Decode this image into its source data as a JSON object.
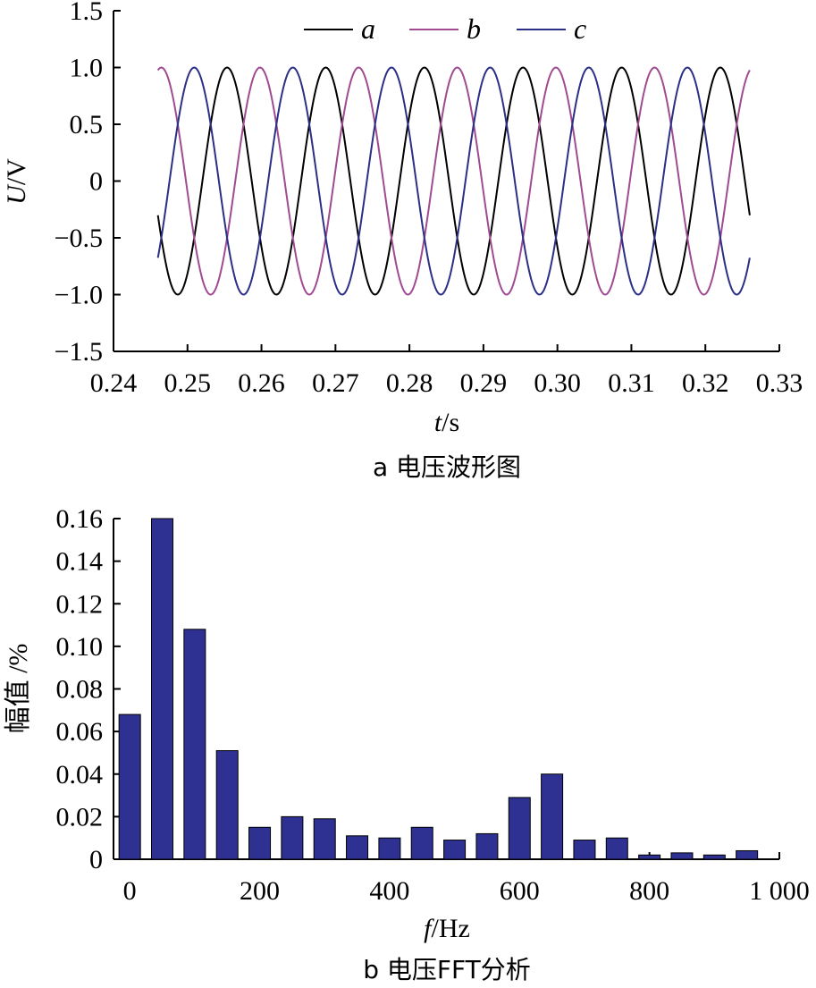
{
  "chart_data": [
    {
      "type": "line",
      "caption": "a 电压波形图",
      "xlabel_var": "t",
      "xlabel_unit": "/s",
      "ylabel_var": "U",
      "ylabel_unit": "/V",
      "xlim": [
        0.24,
        0.33
      ],
      "ylim": [
        -1.5,
        1.5
      ],
      "x_ticks": [
        "0.24",
        "0.25",
        "0.26",
        "0.27",
        "0.28",
        "0.29",
        "0.30",
        "0.31",
        "0.32",
        "0.33"
      ],
      "y_ticks": [
        "1.5",
        "1.0",
        "0.5",
        "0",
        "−0.5",
        "−1.0",
        "−1.5"
      ],
      "x_range": [
        0.246,
        0.326
      ],
      "frequency_hz": 75,
      "amplitude": 1.0,
      "series": [
        {
          "name": "a",
          "color": "#000000",
          "phase_deg": 0
        },
        {
          "name": "b",
          "color": "#a04a92",
          "phase_deg": -120
        },
        {
          "name": "c",
          "color": "#2b2f86",
          "phase_deg": 120
        }
      ],
      "legend_position": "top"
    },
    {
      "type": "bar",
      "caption": "b 电压FFT分析",
      "xlabel_var": "f",
      "xlabel_unit": "/Hz",
      "ylabel": "幅值 /%",
      "xlim": [
        -25,
        1000
      ],
      "ylim": [
        0,
        0.16
      ],
      "x_ticks": [
        "0",
        "200",
        "400",
        "600",
        "800",
        "1 000"
      ],
      "y_ticks": [
        "0.16",
        "0.14",
        "0.12",
        "0.10",
        "0.08",
        "0.06",
        "0.04",
        "0.02",
        "0"
      ],
      "bar_color": "#2e3192",
      "x": [
        0,
        50,
        100,
        150,
        200,
        250,
        300,
        350,
        400,
        450,
        500,
        550,
        600,
        650,
        700,
        750,
        800,
        850,
        900,
        950
      ],
      "values": [
        0.068,
        0.16,
        0.108,
        0.051,
        0.015,
        0.02,
        0.019,
        0.011,
        0.01,
        0.015,
        0.009,
        0.012,
        0.029,
        0.04,
        0.009,
        0.01,
        0.002,
        0.003,
        0.002,
        0.004
      ]
    }
  ]
}
